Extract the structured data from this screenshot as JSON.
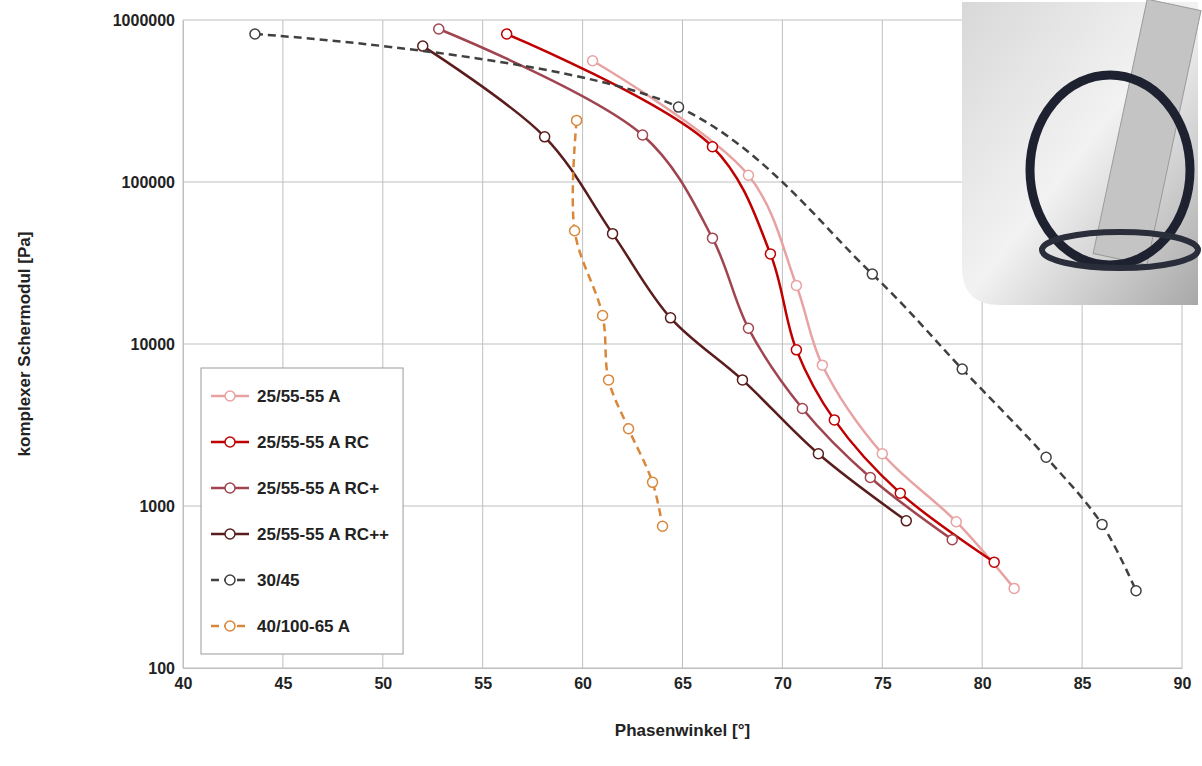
{
  "chart_data": {
    "type": "line",
    "x_label": "Phasenwinkel [°]",
    "y_label": "komplexer Schermodul [Pa]",
    "xlim": [
      40,
      90
    ],
    "xticks": [
      40,
      45,
      50,
      55,
      60,
      65,
      70,
      75,
      80,
      85,
      90
    ],
    "ylim": [
      100,
      1000000
    ],
    "yticks": [
      100,
      1000,
      10000,
      100000,
      1000000
    ],
    "log": "y",
    "grid": true,
    "legend": "lower left",
    "series": [
      {
        "name": "25/55-55 A",
        "color": "#e8a2a2",
        "line_style": "solid",
        "marker": "circle",
        "x": [
          60.5,
          68.3,
          70.7,
          72.0,
          75.0,
          78.7,
          81.6
        ],
        "values": [
          560000,
          110000,
          23000,
          7400,
          2100,
          800,
          310
        ]
      },
      {
        "name": "25/55-55 A RC",
        "color": "#c00000",
        "line_style": "solid",
        "marker": "circle",
        "x": [
          56.2,
          66.5,
          69.4,
          70.7,
          72.6,
          75.9,
          80.6
        ],
        "values": [
          820000,
          165000,
          36000,
          9200,
          3400,
          1200,
          450
        ]
      },
      {
        "name": "25/55-55 A RC+",
        "color": "#a0454f",
        "line_style": "solid",
        "marker": "circle",
        "x": [
          52.8,
          63.0,
          66.5,
          68.3,
          71.0,
          74.4,
          78.5
        ],
        "values": [
          880000,
          195000,
          45000,
          12500,
          4000,
          1500,
          620
        ]
      },
      {
        "name": "25/55-55 A RC++",
        "color": "#5a1c1c",
        "line_style": "solid",
        "marker": "circle",
        "x": [
          52.0,
          58.1,
          61.5,
          64.4,
          68.0,
          71.8,
          76.2
        ],
        "values": [
          690000,
          190000,
          48000,
          14500,
          6000,
          2100,
          810
        ]
      },
      {
        "name": "30/45",
        "color": "#404040",
        "line_style": "dashed",
        "marker": "circle",
        "x": [
          43.6,
          64.8,
          74.5,
          79.0,
          83.2,
          86.0,
          87.7
        ],
        "values": [
          820000,
          290000,
          27000,
          7000,
          2000,
          770,
          300
        ]
      },
      {
        "name": "40/100-65 A",
        "color": "#d9873a",
        "line_style": "dashed",
        "marker": "circle",
        "x": [
          59.7,
          59.6,
          61.0,
          61.3,
          62.3,
          63.5,
          64.0
        ],
        "values": [
          240000,
          50000,
          15000,
          6000,
          3000,
          1400,
          750
        ]
      }
    ]
  }
}
